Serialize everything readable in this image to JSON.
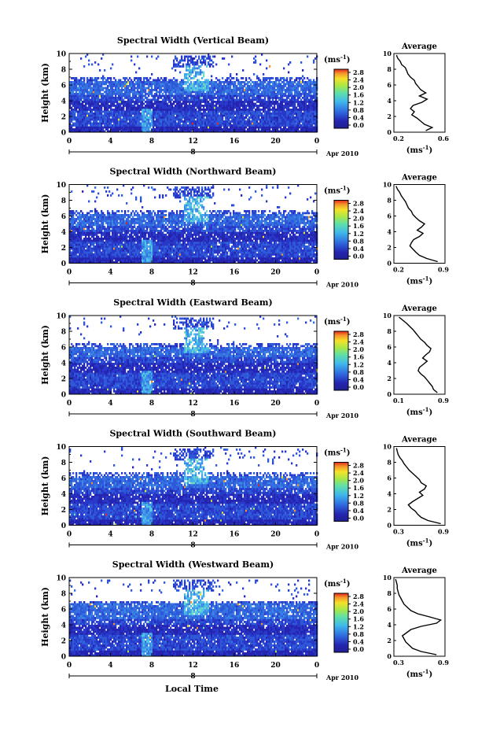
{
  "figure": {
    "date_label": "Apr 2010",
    "xlabel": "Local Time",
    "colorbar_unit": "(ms",
    "colorbar_unit_exp": "-1",
    "colorbar_unit_close": ")",
    "colorbar_ticks": [
      "2.8",
      "2.4",
      "2.0",
      "1.6",
      "1.2",
      "0.8",
      "0.4",
      "0.0"
    ],
    "colors": {
      "low": "#2b1fa3",
      "mid_low": "#2f6ae0",
      "mid": "#40c8e8",
      "mid_high": "#8fe060",
      "high": "#f6e12a",
      "top": "#e4261c"
    }
  },
  "chart_data": [
    {
      "type": "heatmap",
      "title": "Spectral Width (Vertical Beam)",
      "xlabel": "",
      "ylabel": "Height (km)",
      "xlim": [
        0,
        24
      ],
      "ylim": [
        0,
        10
      ],
      "xticks": [
        "0",
        "4",
        "8",
        "12",
        "16",
        "20",
        "0"
      ],
      "yticks": [
        "0",
        "2",
        "4",
        "6",
        "8",
        "10"
      ],
      "colorbar": {
        "label": "ms^-1",
        "range": [
          0.0,
          3.0
        ]
      },
      "echo_top_km": 6.4,
      "average_profile": {
        "title": "Average",
        "xlabel": "(ms",
        "xlabel_exp": "-1",
        "xlabel_close": ")",
        "xlim": [
          0.2,
          0.6
        ],
        "xtick_labels": [
          "0.2",
          "0.6"
        ],
        "yticks": [
          "0",
          "2",
          "4",
          "6",
          "8",
          "10"
        ],
        "height_km": [
          0.2,
          0.6,
          1.0,
          1.4,
          1.8,
          2.2,
          2.6,
          3.0,
          3.4,
          3.8,
          4.2,
          4.6,
          5.0,
          5.4,
          5.8,
          6.2,
          6.6,
          7.0,
          7.4,
          7.8,
          8.2,
          8.6,
          9.0,
          9.4,
          9.8
        ],
        "width_ms": [
          0.45,
          0.5,
          0.44,
          0.41,
          0.38,
          0.34,
          0.36,
          0.33,
          0.35,
          0.42,
          0.46,
          0.4,
          0.45,
          0.41,
          0.39,
          0.37,
          0.36,
          0.33,
          0.31,
          0.3,
          0.29,
          0.26,
          0.25,
          0.23,
          0.22
        ]
      }
    },
    {
      "type": "heatmap",
      "title": "Spectral Width (Northward Beam)",
      "xlabel": "",
      "ylabel": "Height (km)",
      "xlim": [
        0,
        24
      ],
      "ylim": [
        0,
        10
      ],
      "xticks": [
        "0",
        "4",
        "8",
        "12",
        "16",
        "20",
        "0"
      ],
      "yticks": [
        "0",
        "2",
        "4",
        "6",
        "8",
        "10"
      ],
      "colorbar": {
        "label": "ms^-1",
        "range": [
          0.0,
          3.0
        ]
      },
      "echo_top_km": 6.2,
      "average_profile": {
        "title": "Average",
        "xlabel": "(ms",
        "xlabel_exp": "-1",
        "xlabel_close": ")",
        "xlim": [
          0.2,
          0.9
        ],
        "xtick_labels": [
          "0.2",
          "0.9"
        ],
        "yticks": [
          "0",
          "2",
          "4",
          "6",
          "8",
          "10"
        ],
        "height_km": [
          0.2,
          0.6,
          1.0,
          1.4,
          1.8,
          2.2,
          2.6,
          3.0,
          3.4,
          3.8,
          4.2,
          4.6,
          5.0,
          5.4,
          5.8,
          6.2,
          6.6,
          7.0,
          7.4,
          7.8,
          8.2,
          8.6,
          9.0,
          9.4,
          9.8
        ],
        "width_ms": [
          0.8,
          0.65,
          0.55,
          0.5,
          0.46,
          0.42,
          0.44,
          0.47,
          0.55,
          0.6,
          0.52,
          0.58,
          0.62,
          0.55,
          0.5,
          0.46,
          0.44,
          0.4,
          0.38,
          0.36,
          0.33,
          0.3,
          0.28,
          0.25,
          0.23
        ]
      }
    },
    {
      "type": "heatmap",
      "title": "Spectral Width (Eastward Beam)",
      "xlabel": "",
      "ylabel": "Height (km)",
      "xlim": [
        0,
        24
      ],
      "ylim": [
        0,
        10
      ],
      "xticks": [
        "0",
        "4",
        "8",
        "12",
        "16",
        "20",
        "0"
      ],
      "yticks": [
        "0",
        "2",
        "4",
        "6",
        "8",
        "10"
      ],
      "colorbar": {
        "label": "ms^-1",
        "range": [
          0.0,
          3.0
        ]
      },
      "echo_top_km": 6.0,
      "average_profile": {
        "title": "Average",
        "xlabel": "(ms",
        "xlabel_exp": "-1",
        "xlabel_close": ")",
        "xlim": [
          0.1,
          0.9
        ],
        "xtick_labels": [
          "0.1",
          "0.9"
        ],
        "yticks": [
          "0",
          "2",
          "4",
          "6",
          "8",
          "10"
        ],
        "height_km": [
          0.2,
          0.6,
          1.0,
          1.4,
          1.8,
          2.2,
          2.6,
          3.0,
          3.4,
          3.8,
          4.2,
          4.6,
          5.0,
          5.4,
          5.8,
          6.2,
          6.6,
          7.0,
          7.4,
          7.8,
          8.2,
          8.6,
          9.0,
          9.4,
          9.8
        ],
        "width_ms": [
          0.78,
          0.72,
          0.7,
          0.66,
          0.62,
          0.58,
          0.52,
          0.48,
          0.5,
          0.56,
          0.62,
          0.55,
          0.6,
          0.66,
          0.68,
          0.62,
          0.58,
          0.52,
          0.48,
          0.44,
          0.4,
          0.35,
          0.3,
          0.24,
          0.18
        ]
      }
    },
    {
      "type": "heatmap",
      "title": "Spectral Width (Southward Beam)",
      "xlabel": "",
      "ylabel": "Height (km)",
      "xlim": [
        0,
        24
      ],
      "ylim": [
        0,
        10
      ],
      "xticks": [
        "0",
        "4",
        "8",
        "12",
        "16",
        "20",
        "0"
      ],
      "yticks": [
        "0",
        "2",
        "4",
        "6",
        "8",
        "10"
      ],
      "colorbar": {
        "label": "ms^-1",
        "range": [
          0.0,
          3.0
        ]
      },
      "echo_top_km": 6.2,
      "average_profile": {
        "title": "Average",
        "xlabel": "(ms",
        "xlabel_exp": "-1",
        "xlabel_close": ")",
        "xlim": [
          0.3,
          0.9
        ],
        "xtick_labels": [
          "0.3",
          "0.9"
        ],
        "yticks": [
          "0",
          "2",
          "4",
          "6",
          "8",
          "10"
        ],
        "height_km": [
          0.2,
          0.6,
          1.0,
          1.4,
          1.8,
          2.2,
          2.6,
          3.0,
          3.4,
          3.8,
          4.2,
          4.6,
          5.0,
          5.4,
          5.8,
          6.2,
          6.6,
          7.0,
          7.4,
          7.8,
          8.2,
          8.6,
          9.0,
          9.4,
          9.8
        ],
        "width_ms": [
          0.85,
          0.7,
          0.62,
          0.58,
          0.55,
          0.5,
          0.47,
          0.52,
          0.58,
          0.64,
          0.6,
          0.66,
          0.68,
          0.62,
          0.6,
          0.56,
          0.52,
          0.48,
          0.45,
          0.42,
          0.4,
          0.37,
          0.35,
          0.34,
          0.33
        ]
      }
    },
    {
      "type": "heatmap",
      "title": "Spectral Width (Westward Beam)",
      "xlabel": "Local Time",
      "ylabel": "Height (km)",
      "xlim": [
        0,
        24
      ],
      "ylim": [
        0,
        10
      ],
      "xticks": [
        "0",
        "4",
        "8",
        "12",
        "16",
        "20",
        "0"
      ],
      "yticks": [
        "0",
        "2",
        "4",
        "6",
        "8",
        "10"
      ],
      "colorbar": {
        "label": "ms^-1",
        "range": [
          0.0,
          3.0
        ]
      },
      "echo_top_km": 6.6,
      "average_profile": {
        "title": "Average",
        "xlabel": "(ms",
        "xlabel_exp": "-1",
        "xlabel_close": ")",
        "xlim": [
          0.3,
          0.9
        ],
        "xtick_labels": [
          "0.3",
          "0.9"
        ],
        "yticks": [
          "0",
          "2",
          "4",
          "6",
          "8",
          "10"
        ],
        "height_km": [
          0.2,
          0.6,
          1.0,
          1.4,
          1.8,
          2.2,
          2.6,
          3.0,
          3.4,
          3.8,
          4.2,
          4.6,
          5.0,
          5.4,
          5.8,
          6.2,
          6.6,
          7.0,
          7.4,
          7.8,
          8.2,
          8.6,
          9.0,
          9.4,
          9.8
        ],
        "width_ms": [
          0.8,
          0.62,
          0.52,
          0.48,
          0.44,
          0.42,
          0.4,
          0.45,
          0.5,
          0.62,
          0.8,
          0.85,
          0.72,
          0.58,
          0.5,
          0.46,
          0.42,
          0.4,
          0.38,
          0.36,
          0.35,
          0.34,
          0.34,
          0.33,
          0.32
        ]
      }
    }
  ]
}
